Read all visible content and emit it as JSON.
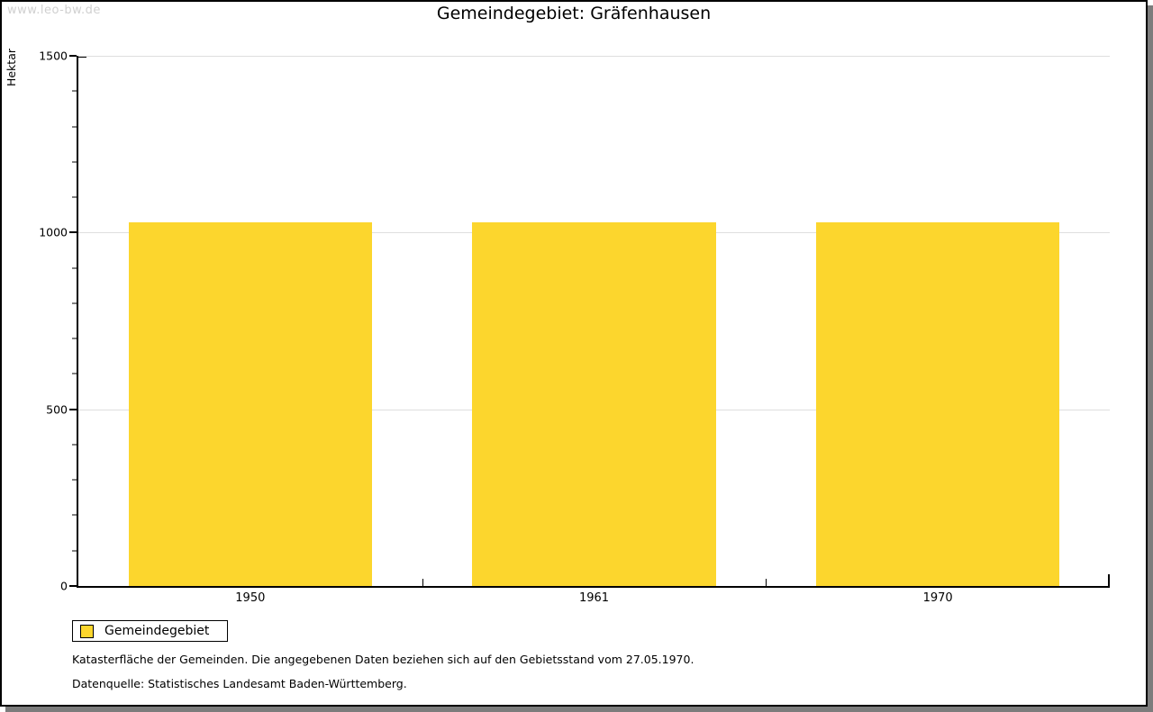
{
  "watermark": "www.leo-bw.de",
  "header": {
    "title": "Gemeindegebiet: Gräfenhausen"
  },
  "chart_data": {
    "type": "bar",
    "title": "Gemeindegebiet: Gräfenhausen",
    "ylabel": "Hektar",
    "xlabel": "",
    "categories": [
      "1950",
      "1961",
      "1970"
    ],
    "series": [
      {
        "name": "Gemeindegebiet",
        "values": [
          1030,
          1030,
          1030
        ]
      }
    ],
    "ylim": [
      0,
      1500
    ],
    "ytick_major": 500,
    "ytick_minor": 100,
    "grid": true,
    "legend_position": "bottom-left",
    "bar_color": "#FCD62D",
    "unit": "Hektar"
  },
  "legend": {
    "items": [
      {
        "label": "Gemeindegebiet",
        "color": "#FCD62D"
      }
    ]
  },
  "footnotes": [
    "Katasterfläche der Gemeinden. Die angegebenen Daten beziehen sich auf den Gebietsstand vom 27.05.1970.",
    "Datenquelle: Statistisches Landesamt Baden-Württemberg."
  ],
  "colors": {
    "bar": "#FCD62D",
    "grid": "#DEDEDE",
    "axis": "#000000",
    "watermark": "#D0D0D0",
    "shadow": "#7C7C7C",
    "background": "#FFFFFF"
  }
}
